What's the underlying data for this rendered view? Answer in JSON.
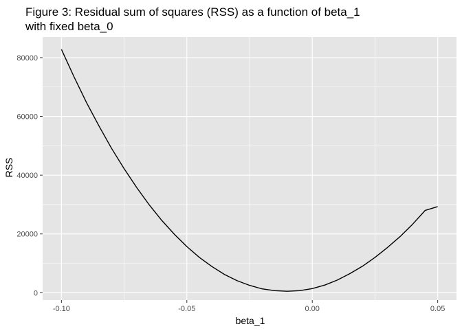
{
  "chart_data": {
    "type": "line",
    "title": "Figure 3: Residual sum of squares (RSS) as a function of beta_1\nwith fixed beta_0",
    "xlabel": "beta_1",
    "ylabel": "RSS",
    "xlim": [
      -0.1075,
      0.0575
    ],
    "ylim": [
      -2500,
      87000
    ],
    "x_ticks": [
      -0.1,
      -0.05,
      0.0,
      0.05
    ],
    "x_tick_labels": [
      "-0.10",
      "-0.05",
      "0.00",
      "0.05"
    ],
    "y_ticks": [
      0,
      20000,
      40000,
      60000,
      80000
    ],
    "y_tick_labels": [
      "0",
      "20000",
      "40000",
      "60000",
      "80000"
    ],
    "grid": true,
    "legend": "none",
    "series": [
      {
        "x": [
          -0.1,
          -0.095,
          -0.09,
          -0.085,
          -0.08,
          -0.075,
          -0.07,
          -0.065,
          -0.06,
          -0.055,
          -0.05,
          -0.045,
          -0.04,
          -0.035,
          -0.03,
          -0.025,
          -0.02,
          -0.015,
          -0.01,
          -0.005,
          0.0,
          0.005,
          0.01,
          0.015,
          0.02,
          0.025,
          0.03,
          0.035,
          0.04,
          0.045,
          0.05
        ],
        "y": [
          82800,
          73500,
          64700,
          56700,
          49100,
          42200,
          35800,
          29900,
          24600,
          19900,
          15700,
          12000,
          8900,
          6200,
          4100,
          2500,
          1300,
          700,
          500,
          700,
          1400,
          2600,
          4300,
          6500,
          9000,
          12000,
          15400,
          19100,
          23300,
          28000,
          29300
        ],
        "color": "#000000"
      }
    ],
    "colors": {
      "panel_background": "#e5e5e5",
      "grid_major": "#ffffff",
      "line": "#000000",
      "text": "#000000",
      "tick_label": "#4d4d4d"
    }
  }
}
